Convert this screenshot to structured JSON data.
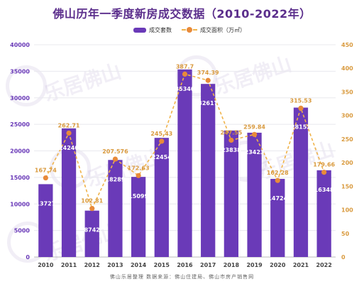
{
  "title": "佛山历年一季度新房成交数据（2010-2022年）",
  "legend": {
    "bars_label": "成交套数",
    "line_label": "成交面积（万㎡）"
  },
  "footer": "佛山乐居整理   数据来源：佛山住建局、佛山市房产销售网",
  "watermark": "乐居佛山",
  "colors": {
    "bar": "#6a3ab8",
    "line": "#f0b34a",
    "point": "#e88a3a",
    "left_axis": "#6a3ab8",
    "right_axis": "#d99a3e",
    "grid": "#e8e8ee"
  },
  "chart_data": {
    "type": "bar",
    "categories": [
      "2010",
      "2011",
      "2012",
      "2013",
      "2014",
      "2015",
      "2016",
      "2017",
      "2018",
      "2019",
      "2020",
      "2021",
      "2022"
    ],
    "series": [
      {
        "name": "成交套数",
        "type": "bar",
        "axis": "left",
        "values": [
          13727,
          24240,
          8742,
          18289,
          15099,
          22454,
          35340,
          32617,
          23838,
          23423,
          14724,
          28152,
          16348
        ]
      },
      {
        "name": "成交面积（万㎡）",
        "type": "line",
        "axis": "right",
        "values": [
          167.74,
          262.71,
          102.81,
          207.576,
          172.63,
          245.43,
          387.7,
          374.39,
          247.55,
          259.84,
          162.28,
          315.53,
          179.66
        ]
      }
    ],
    "left_axis": {
      "min": 0,
      "max": 40000,
      "ticks": [
        0,
        5000,
        10000,
        15000,
        20000,
        25000,
        30000,
        35000,
        40000
      ]
    },
    "right_axis": {
      "min": 0,
      "max": 450,
      "ticks": [
        0,
        50,
        100,
        150,
        200,
        250,
        300,
        350,
        400,
        450
      ]
    },
    "grid": true,
    "legend_position": "top-right"
  }
}
